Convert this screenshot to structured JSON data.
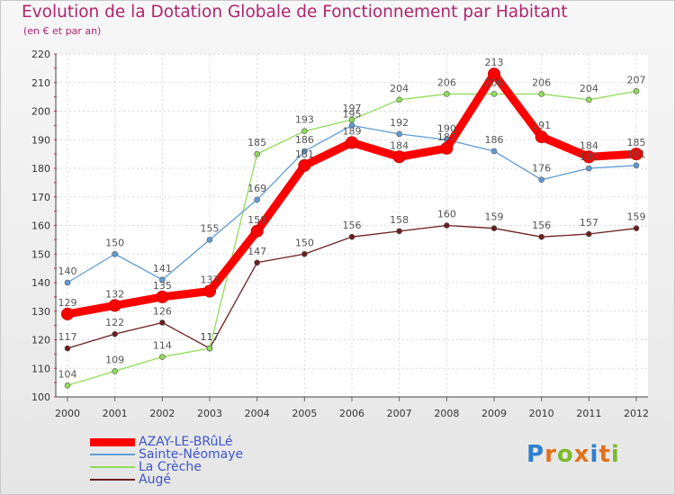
{
  "title": "Evolution de la Dotation Globale de Fonctionnement par Habitant",
  "subtitle": "(en € et par an)",
  "chart_data": {
    "type": "line",
    "title": "Evolution de la Dotation Globale de Fonctionnement par Habitant",
    "subtitle": "(en € et par an)",
    "xlabel": "",
    "ylabel": "",
    "x": [
      "2000",
      "2001",
      "2002",
      "2003",
      "2004",
      "2005",
      "2006",
      "2007",
      "2008",
      "2009",
      "2010",
      "2011",
      "2012"
    ],
    "ylim": [
      100,
      220
    ],
    "yticks": [
      100,
      110,
      120,
      130,
      140,
      150,
      160,
      170,
      180,
      190,
      200,
      210,
      220
    ],
    "grid": true,
    "legend_position": "bottom-left",
    "series": [
      {
        "name": "AZAY-LE-BRûLé",
        "color": "#ff0000",
        "values": [
          129,
          132,
          135,
          137,
          158,
          181,
          189,
          184,
          187,
          213,
          191,
          184,
          185
        ]
      },
      {
        "name": "Sainte-Néomaye",
        "color": "#5f9bd4",
        "values": [
          140,
          150,
          141,
          155,
          169,
          186,
          195,
          192,
          190,
          186,
          176,
          180,
          181
        ]
      },
      {
        "name": "La Crèche",
        "color": "#8fdc5b",
        "values": [
          104,
          109,
          114,
          117,
          185,
          193,
          197,
          204,
          206,
          206,
          206,
          204,
          207
        ]
      },
      {
        "name": "Augé",
        "color": "#6b1f1f",
        "values": [
          117,
          122,
          126,
          117,
          147,
          150,
          156,
          158,
          160,
          159,
          156,
          157,
          159
        ]
      }
    ]
  },
  "logo": {
    "text": "Proxiti",
    "letter_colors": [
      "#2f7fcf",
      "#e2721b",
      "#7dbb2e",
      "#e2721b",
      "#2f7fcf",
      "#e2721b",
      "#7dbb2e"
    ]
  }
}
